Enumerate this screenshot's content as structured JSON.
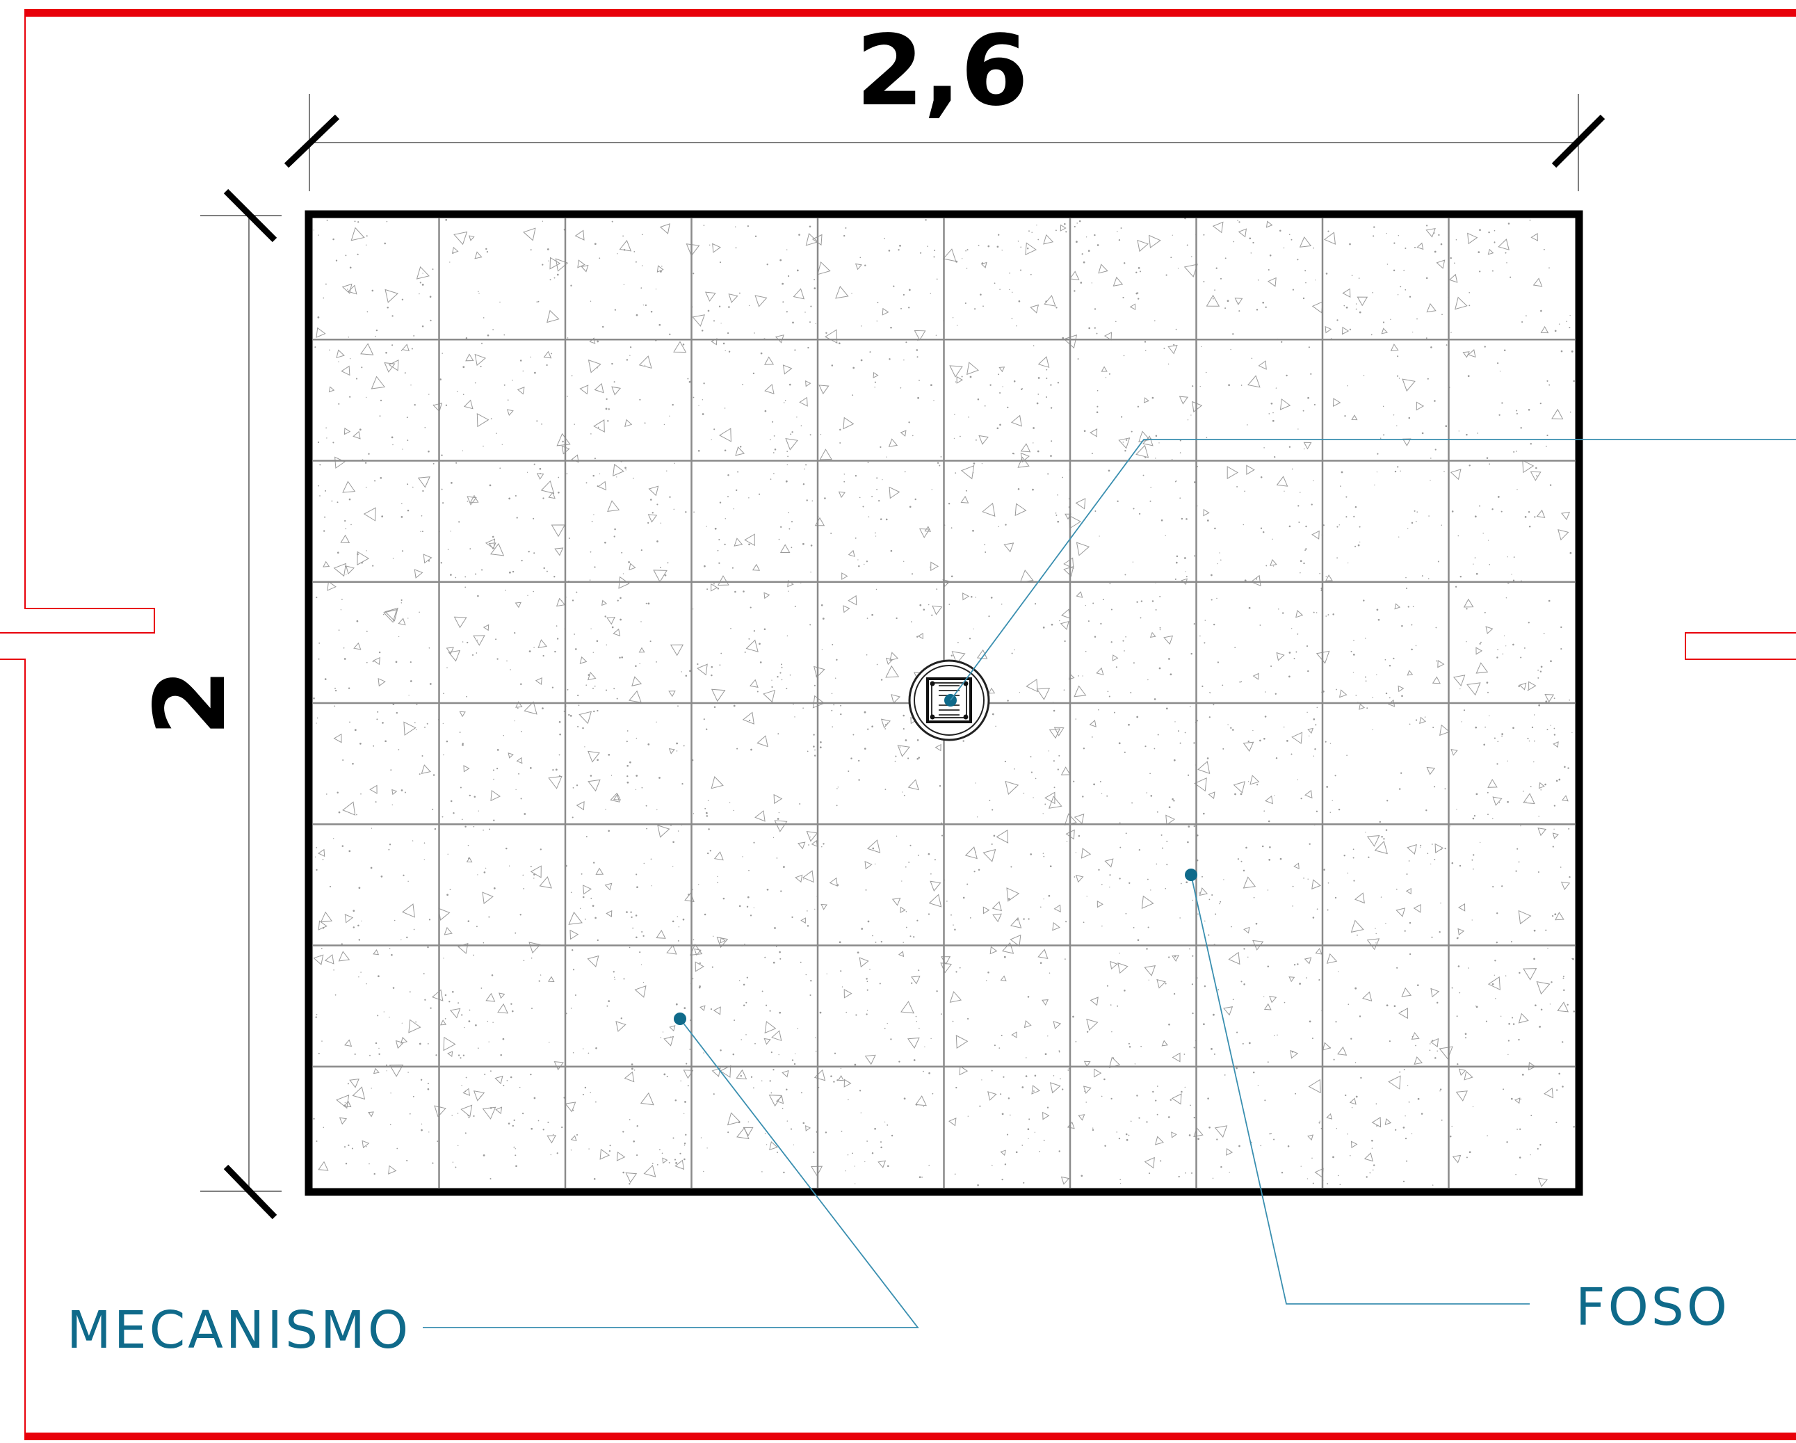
{
  "dimensions": {
    "width_label": "2,6",
    "height_label": "2"
  },
  "callouts": {
    "mechanism": "MECANISMO",
    "pit": "FOSO"
  },
  "grid": {
    "columns": 10,
    "rows": 8
  },
  "colors": {
    "wall": "#e8000a",
    "outline": "#000000",
    "grid": "#8a8a8a",
    "leader": "#3a8fb0",
    "label": "#0f6a8a",
    "marker": "#0f6a8a",
    "texture": "#9a9a9a"
  }
}
